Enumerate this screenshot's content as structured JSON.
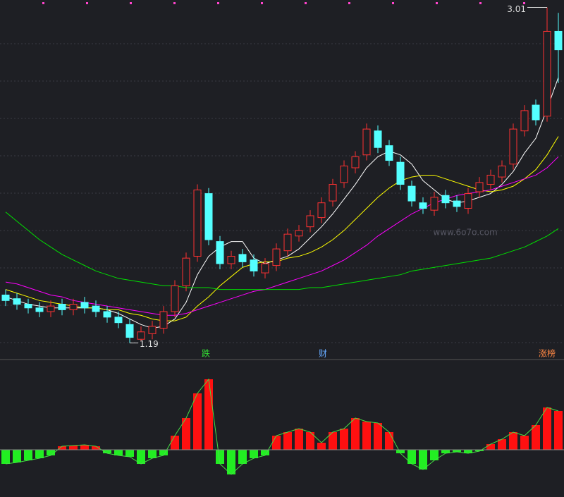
{
  "chart_data": {
    "type": "candlestick",
    "open": [
      1.45,
      1.43,
      1.4,
      1.38,
      1.36,
      1.4,
      1.37,
      1.41,
      1.39,
      1.36,
      1.33,
      1.29,
      1.21,
      1.24,
      1.27,
      1.36,
      1.5,
      1.66,
      2.0,
      1.74,
      1.62,
      1.67,
      1.64,
      1.57,
      1.61,
      1.69,
      1.77,
      1.82,
      1.87,
      1.96,
      2.06,
      2.14,
      2.21,
      2.34,
      2.26,
      2.17,
      2.04,
      1.95,
      1.91,
      1.99,
      1.96,
      1.92,
      2.01,
      2.05,
      2.09,
      2.16,
      2.34,
      2.48,
      2.42,
      2.88
    ],
    "high": [
      1.48,
      1.46,
      1.43,
      1.41,
      1.42,
      1.43,
      1.43,
      1.44,
      1.42,
      1.39,
      1.36,
      1.32,
      1.28,
      1.31,
      1.39,
      1.53,
      1.68,
      2.05,
      2.03,
      1.77,
      1.69,
      1.7,
      1.67,
      1.65,
      1.73,
      1.81,
      1.83,
      1.91,
      1.98,
      2.08,
      2.18,
      2.23,
      2.38,
      2.37,
      2.29,
      2.2,
      2.07,
      1.98,
      2.01,
      2.02,
      1.99,
      2.03,
      2.09,
      2.13,
      2.18,
      2.38,
      2.48,
      2.51,
      3.01,
      2.98
    ],
    "low": [
      1.39,
      1.37,
      1.35,
      1.33,
      1.33,
      1.34,
      1.34,
      1.35,
      1.33,
      1.3,
      1.27,
      1.19,
      1.2,
      1.21,
      1.24,
      1.33,
      1.47,
      1.63,
      1.72,
      1.59,
      1.59,
      1.6,
      1.55,
      1.54,
      1.58,
      1.66,
      1.74,
      1.79,
      1.84,
      1.93,
      2.03,
      2.11,
      2.18,
      2.22,
      2.15,
      2.02,
      1.93,
      1.89,
      1.88,
      1.92,
      1.9,
      1.89,
      1.98,
      2.02,
      2.06,
      2.13,
      2.31,
      2.37,
      2.39,
      2.6
    ],
    "close": [
      1.42,
      1.4,
      1.38,
      1.36,
      1.39,
      1.37,
      1.4,
      1.38,
      1.36,
      1.33,
      1.3,
      1.22,
      1.25,
      1.28,
      1.36,
      1.5,
      1.65,
      2.02,
      1.75,
      1.62,
      1.66,
      1.63,
      1.58,
      1.62,
      1.7,
      1.78,
      1.8,
      1.88,
      1.95,
      2.05,
      2.15,
      2.2,
      2.35,
      2.25,
      2.18,
      2.05,
      1.96,
      1.92,
      1.98,
      1.95,
      1.93,
      2.0,
      2.06,
      2.1,
      2.15,
      2.35,
      2.45,
      2.4,
      2.88,
      2.78
    ],
    "up_color": "#ff3232",
    "down_color": "#54ffff",
    "ylim": [
      1.1,
      3.05
    ],
    "moving_averages": [
      {
        "color": "#ffffff",
        "values": [
          1.44,
          1.42,
          1.4,
          1.39,
          1.38,
          1.38,
          1.38,
          1.38,
          1.38,
          1.37,
          1.35,
          1.32,
          1.29,
          1.27,
          1.28,
          1.32,
          1.41,
          1.56,
          1.66,
          1.71,
          1.74,
          1.74,
          1.65,
          1.62,
          1.64,
          1.66,
          1.7,
          1.76,
          1.82,
          1.89,
          1.97,
          2.05,
          2.14,
          2.2,
          2.23,
          2.21,
          2.16,
          2.07,
          2.02,
          1.97,
          1.95,
          1.96,
          1.98,
          2.0,
          2.05,
          2.12,
          2.22,
          2.3,
          2.46,
          2.63
        ]
      },
      {
        "color": "#ffff00",
        "values": [
          1.48,
          1.46,
          1.44,
          1.42,
          1.41,
          1.4,
          1.39,
          1.38,
          1.38,
          1.37,
          1.37,
          1.35,
          1.34,
          1.32,
          1.31,
          1.31,
          1.33,
          1.39,
          1.44,
          1.5,
          1.55,
          1.6,
          1.62,
          1.63,
          1.63,
          1.65,
          1.66,
          1.68,
          1.71,
          1.75,
          1.8,
          1.86,
          1.92,
          1.98,
          2.03,
          2.07,
          2.09,
          2.1,
          2.1,
          2.08,
          2.06,
          2.04,
          2.02,
          2.01,
          2.02,
          2.04,
          2.08,
          2.13,
          2.21,
          2.31
        ]
      },
      {
        "color": "#ff00ff",
        "values": [
          1.52,
          1.51,
          1.49,
          1.47,
          1.45,
          1.44,
          1.42,
          1.41,
          1.4,
          1.39,
          1.38,
          1.37,
          1.36,
          1.35,
          1.34,
          1.34,
          1.35,
          1.37,
          1.39,
          1.41,
          1.43,
          1.45,
          1.47,
          1.48,
          1.5,
          1.52,
          1.54,
          1.56,
          1.58,
          1.61,
          1.64,
          1.68,
          1.72,
          1.77,
          1.81,
          1.85,
          1.89,
          1.92,
          1.95,
          1.97,
          1.99,
          2.0,
          2.01,
          2.02,
          2.04,
          2.06,
          2.08,
          2.1,
          2.14,
          2.2
        ]
      },
      {
        "color": "#00e000",
        "values": [
          1.9,
          1.85,
          1.8,
          1.75,
          1.71,
          1.67,
          1.64,
          1.61,
          1.58,
          1.56,
          1.54,
          1.53,
          1.52,
          1.51,
          1.5,
          1.5,
          1.49,
          1.49,
          1.49,
          1.48,
          1.48,
          1.48,
          1.48,
          1.48,
          1.48,
          1.48,
          1.48,
          1.49,
          1.49,
          1.5,
          1.51,
          1.52,
          1.53,
          1.54,
          1.55,
          1.56,
          1.58,
          1.59,
          1.6,
          1.61,
          1.62,
          1.63,
          1.64,
          1.65,
          1.67,
          1.69,
          1.71,
          1.74,
          1.77,
          1.81
        ]
      }
    ],
    "high_mark": 3.01,
    "low_mark": 1.19,
    "events": [
      {
        "text": "跌",
        "color": "#33dd33"
      },
      {
        "text": "财",
        "color": "#66aaff"
      },
      {
        "text": "涨榜",
        "color": "#ff8844"
      }
    ],
    "watermark": "www.6o7o.com",
    "indicator": {
      "values": [
        -20,
        -18,
        -15,
        -12,
        -8,
        5,
        6,
        7,
        5,
        -5,
        -8,
        -10,
        -20,
        -12,
        -8,
        20,
        45,
        80,
        100,
        -20,
        -35,
        -20,
        -12,
        -8,
        20,
        25,
        30,
        25,
        10,
        25,
        30,
        45,
        40,
        38,
        25,
        -5,
        -20,
        -28,
        -15,
        -5,
        -3,
        -5,
        -2,
        8,
        15,
        25,
        20,
        35,
        60,
        55
      ],
      "ylim": [
        -67,
        128
      ],
      "up_color": "#ff1010",
      "down_color": "#22ee22"
    }
  }
}
